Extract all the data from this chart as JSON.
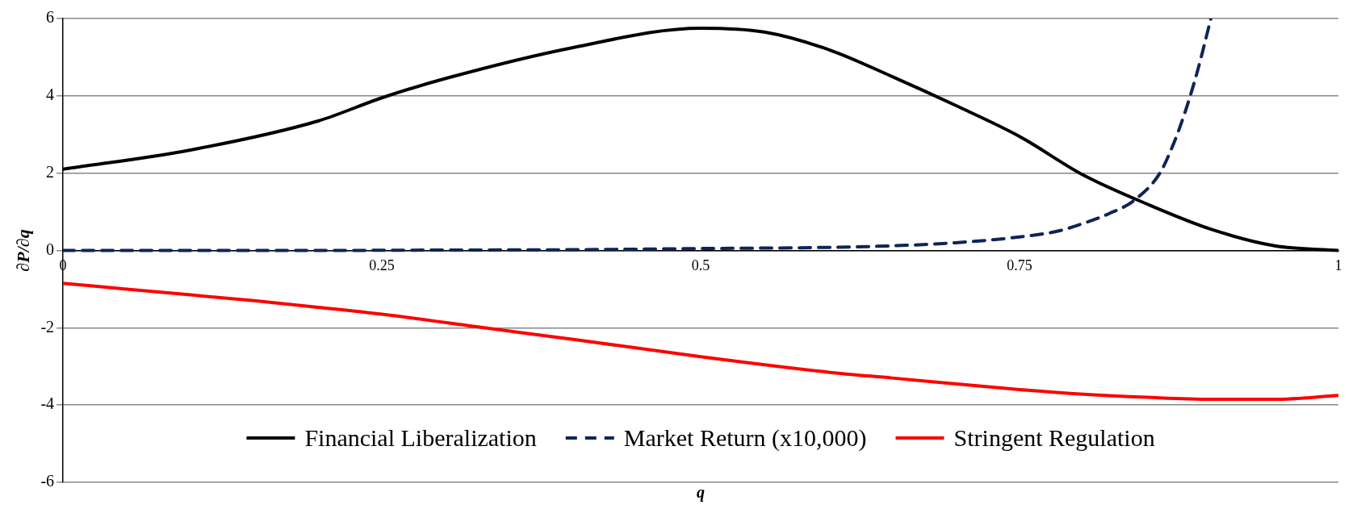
{
  "chart_data": {
    "type": "line",
    "xlabel": "q",
    "ylabel": "∂P/∂q",
    "xlim": [
      0,
      1
    ],
    "xticks": [
      0,
      0.25,
      0.5,
      0.75,
      1
    ],
    "ylim": [
      -6,
      6
    ],
    "yticks": [
      -6,
      -4,
      -2,
      0,
      2,
      4,
      6
    ],
    "grid": "y",
    "legend": "bottom",
    "marker": "none",
    "series": [
      {
        "name": "Financial Liberalization",
        "color": "#000000",
        "line_style": "solid",
        "x": [
          0,
          0.1,
          0.2,
          0.25,
          0.3,
          0.4,
          0.5,
          0.55,
          0.6,
          0.65,
          0.7,
          0.75,
          0.8,
          0.85,
          0.9,
          0.95,
          1
        ],
        "values": [
          2.1,
          2.6,
          3.35,
          3.95,
          4.45,
          5.25,
          5.75,
          5.65,
          5.2,
          4.5,
          3.75,
          2.95,
          1.95,
          1.2,
          0.55,
          0.12,
          0
        ]
      },
      {
        "name": "Market Return (x10,000)",
        "color": "#0f2557",
        "line_style": "dashed",
        "x": [
          0,
          0.1,
          0.2,
          0.3,
          0.4,
          0.5,
          0.6,
          0.65,
          0.7,
          0.75,
          0.78,
          0.8,
          0.82,
          0.84,
          0.86,
          0.87,
          0.88,
          0.89,
          0.9
        ],
        "values": [
          0,
          0,
          0,
          0.01,
          0.02,
          0.05,
          0.08,
          0.12,
          0.2,
          0.35,
          0.5,
          0.7,
          0.95,
          1.3,
          2,
          2.7,
          3.6,
          4.7,
          6
        ]
      },
      {
        "name": "Stringent Regulation",
        "color": "#ff0000",
        "line_style": "solid",
        "x": [
          0,
          0.05,
          0.1,
          0.15,
          0.2,
          0.25,
          0.33,
          0.4,
          0.5,
          0.6,
          0.65,
          0.75,
          0.8,
          0.85,
          0.9,
          0.95,
          1
        ],
        "values": [
          -0.85,
          -1,
          -1.15,
          -1.3,
          -1.47,
          -1.65,
          -2,
          -2.3,
          -2.75,
          -3.15,
          -3.3,
          -3.6,
          -3.72,
          -3.8,
          -3.85,
          -3.85,
          -3.75
        ]
      }
    ]
  }
}
